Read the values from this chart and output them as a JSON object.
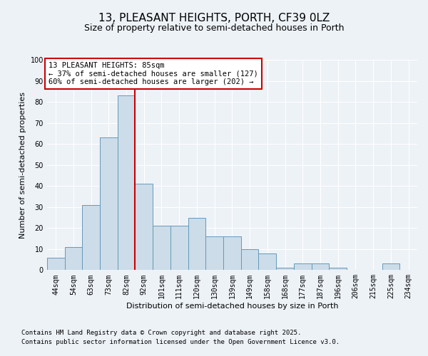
{
  "title_line1": "13, PLEASANT HEIGHTS, PORTH, CF39 0LZ",
  "title_line2": "Size of property relative to semi-detached houses in Porth",
  "xlabel": "Distribution of semi-detached houses by size in Porth",
  "ylabel": "Number of semi-detached properties",
  "categories": [
    "44sqm",
    "54sqm",
    "63sqm",
    "73sqm",
    "82sqm",
    "92sqm",
    "101sqm",
    "111sqm",
    "120sqm",
    "130sqm",
    "139sqm",
    "149sqm",
    "158sqm",
    "168sqm",
    "177sqm",
    "187sqm",
    "196sqm",
    "206sqm",
    "215sqm",
    "225sqm",
    "234sqm"
  ],
  "values": [
    6,
    11,
    31,
    63,
    83,
    41,
    21,
    21,
    25,
    16,
    16,
    10,
    8,
    1,
    3,
    3,
    1,
    0,
    0,
    3,
    0
  ],
  "bar_color": "#ccdce8",
  "bar_edge_color": "#6699bb",
  "reference_line_x": 4.5,
  "reference_line_color": "#cc0000",
  "annotation_title": "13 PLEASANT HEIGHTS: 85sqm",
  "annotation_line1": "← 37% of semi-detached houses are smaller (127)",
  "annotation_line2": "60% of semi-detached houses are larger (202) →",
  "annotation_box_color": "#cc0000",
  "ylim": [
    0,
    100
  ],
  "yticks": [
    0,
    10,
    20,
    30,
    40,
    50,
    60,
    70,
    80,
    90,
    100
  ],
  "footnote1": "Contains HM Land Registry data © Crown copyright and database right 2025.",
  "footnote2": "Contains public sector information licensed under the Open Government Licence v3.0.",
  "background_color": "#edf2f7",
  "grid_color": "#ffffff",
  "title_fontsize": 11,
  "subtitle_fontsize": 9,
  "label_fontsize": 8,
  "tick_fontsize": 7,
  "annotation_fontsize": 7.5,
  "footnote_fontsize": 6.5
}
